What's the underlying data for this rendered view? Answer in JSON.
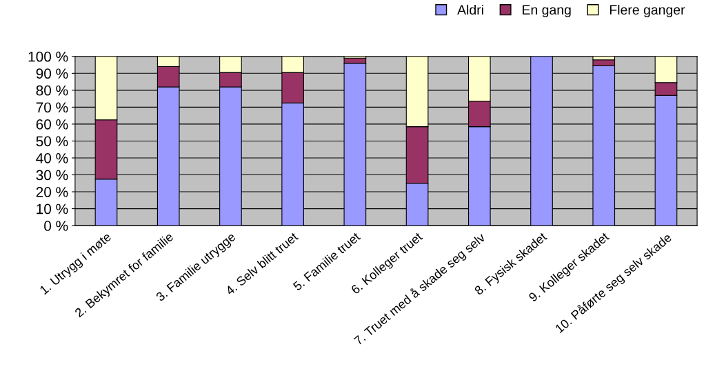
{
  "chart_data": {
    "type": "bar",
    "stacked": true,
    "categories": [
      "1. Utrygg i møte",
      "2. Bekymret for familie",
      "3. Familie utrygge",
      "4. Selv blitt truet",
      "5. Familie truet",
      "6. Kolleger truet",
      "7. Truet med å skade seg selv",
      "8. Fysisk skadet",
      "9. Kolleger skadet",
      "10. Påførte seg selv skade"
    ],
    "series": [
      {
        "name": "Aldri",
        "color": "#9999ff",
        "values": [
          27.5,
          82,
          82,
          72.5,
          96,
          25,
          58.5,
          100,
          94.5,
          77
        ]
      },
      {
        "name": "En gang",
        "color": "#993366",
        "values": [
          35,
          12,
          8.5,
          18,
          3,
          33.5,
          15,
          0,
          3.5,
          7.5
        ]
      },
      {
        "name": "Flere ganger",
        "color": "#ffffcc",
        "values": [
          37.5,
          6,
          9.5,
          9.5,
          1,
          41.5,
          26.5,
          0,
          2,
          15.5
        ]
      }
    ],
    "ylim": [
      0,
      100
    ],
    "yticks": [
      {
        "value": 0,
        "label": "0 %"
      },
      {
        "value": 10,
        "label": "10 %"
      },
      {
        "value": 20,
        "label": "20 %"
      },
      {
        "value": 30,
        "label": "30 %"
      },
      {
        "value": 40,
        "label": "40 %"
      },
      {
        "value": 50,
        "label": "50 %"
      },
      {
        "value": 60,
        "label": "60 %"
      },
      {
        "value": 70,
        "label": "70 %"
      },
      {
        "value": 80,
        "label": "80 %"
      },
      {
        "value": 90,
        "label": "90 %"
      },
      {
        "value": 100,
        "label": "100 %"
      }
    ],
    "grid": "y",
    "legend": "top right"
  }
}
